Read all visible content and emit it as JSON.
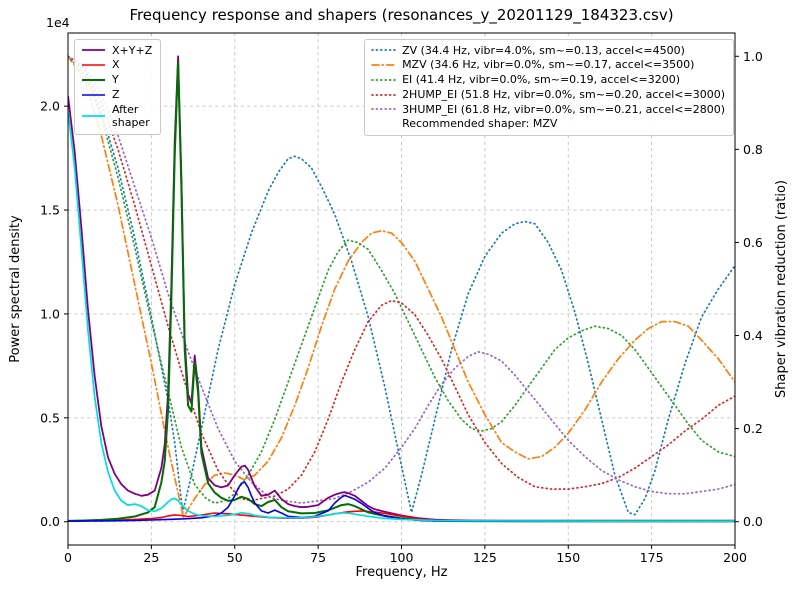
{
  "chart_data": {
    "type": "line",
    "title": "Frequency response and shapers (resonances_y_20201129_184323.csv)",
    "xlabel": "Frequency, Hz",
    "ylabel": "Power spectral density",
    "ylabel_right": "Shaper vibration reduction (ratio)",
    "offset_text": "1e4",
    "grid": true,
    "xlim": [
      0,
      200
    ],
    "ylim_left": [
      -1120,
      23520
    ],
    "ylim_right": [
      -0.05,
      1.05
    ],
    "x_ticks": [
      0,
      25,
      50,
      75,
      100,
      125,
      150,
      175,
      200
    ],
    "y_ticks_left": {
      "values": [
        0,
        5000,
        10000,
        15000,
        20000
      ],
      "labels": [
        "0.0",
        "0.5",
        "1.0",
        "1.5",
        "2.0"
      ]
    },
    "y_ticks_right": {
      "values": [
        0,
        0.2,
        0.4,
        0.6,
        0.8,
        1.0
      ],
      "labels": [
        "0.0",
        "0.2",
        "0.4",
        "0.6",
        "0.8",
        "1.0"
      ]
    },
    "legend_left_position": "upper left",
    "legend_right_position": "upper right",
    "recommended_shaper": "MZV",
    "recommended_shaper_label": "Recommended shaper: MZV",
    "psd_series": [
      {
        "name": "X+Y+Z",
        "legend": "X+Y+Z",
        "color": "#800080",
        "dash": "solid",
        "width": 1.8,
        "axis": "left",
        "x": [
          0,
          2,
          4,
          6,
          8,
          10,
          12,
          14,
          16,
          18,
          20,
          22,
          24,
          26,
          28,
          29,
          30,
          31,
          32,
          33,
          34,
          35,
          36,
          37,
          38,
          39,
          40,
          42,
          44,
          46,
          48,
          50,
          51,
          52,
          53,
          54,
          55,
          56,
          58,
          60,
          62,
          64,
          66,
          68,
          70,
          72,
          75,
          78,
          80,
          82,
          83,
          84,
          86,
          88,
          90,
          92,
          95,
          100,
          105,
          110,
          115,
          120,
          130,
          140,
          160,
          180,
          200
        ],
        "y": [
          20500,
          17800,
          14200,
          10200,
          7000,
          4600,
          3100,
          2300,
          1800,
          1500,
          1350,
          1250,
          1300,
          1500,
          2600,
          3700,
          6200,
          11500,
          18300,
          22400,
          16600,
          8800,
          6100,
          5700,
          8000,
          6500,
          3600,
          2100,
          1750,
          1650,
          1750,
          2250,
          2450,
          2650,
          2700,
          2500,
          2100,
          1700,
          1250,
          1300,
          1500,
          1100,
          850,
          750,
          700,
          720,
          800,
          1150,
          1300,
          1400,
          1420,
          1380,
          1250,
          1000,
          750,
          600,
          480,
          300,
          170,
          100,
          80,
          60,
          50,
          50,
          50,
          50,
          50
        ]
      },
      {
        "name": "X",
        "legend": "X",
        "color": "#ff0000",
        "dash": "solid",
        "width": 1.6,
        "axis": "left",
        "x": [
          0,
          5,
          10,
          15,
          20,
          25,
          28,
          30,
          32,
          34,
          36,
          40,
          44,
          48,
          52,
          56,
          60,
          65,
          70,
          75,
          80,
          84,
          88,
          92,
          96,
          100,
          105,
          110,
          120,
          140,
          160,
          180,
          200
        ],
        "y": [
          30,
          40,
          60,
          80,
          110,
          150,
          200,
          280,
          330,
          300,
          250,
          320,
          420,
          380,
          320,
          260,
          210,
          170,
          170,
          230,
          380,
          480,
          520,
          470,
          370,
          260,
          140,
          70,
          40,
          30,
          30,
          30,
          30
        ]
      },
      {
        "name": "Y",
        "legend": "Y",
        "color": "#006e00",
        "dash": "solid",
        "width": 2.0,
        "axis": "left",
        "x": [
          0,
          5,
          10,
          15,
          20,
          24,
          26,
          28,
          29,
          30,
          31,
          32,
          33,
          34,
          35,
          36,
          37,
          38,
          39,
          40,
          42,
          44,
          46,
          48,
          50,
          52,
          54,
          56,
          58,
          60,
          62,
          64,
          66,
          70,
          74,
          78,
          82,
          84,
          86,
          90,
          95,
          100,
          105,
          110,
          120,
          140,
          160,
          180,
          200
        ],
        "y": [
          40,
          60,
          90,
          140,
          250,
          450,
          700,
          1900,
          2900,
          5400,
          10800,
          17600,
          22100,
          16100,
          8300,
          5600,
          5300,
          7700,
          6200,
          3300,
          1850,
          1400,
          1150,
          1000,
          1050,
          1200,
          1100,
          850,
          750,
          950,
          1050,
          700,
          500,
          400,
          420,
          550,
          800,
          850,
          750,
          450,
          280,
          160,
          90,
          50,
          30,
          20,
          20,
          20,
          20
        ]
      },
      {
        "name": "Z",
        "legend": "Z",
        "color": "#0000ee",
        "dash": "solid",
        "width": 1.6,
        "axis": "left",
        "x": [
          0,
          10,
          20,
          30,
          35,
          40,
          44,
          46,
          48,
          50,
          51,
          52,
          53,
          54,
          55,
          56,
          58,
          60,
          62,
          64,
          66,
          70,
          74,
          78,
          80,
          82,
          83,
          84,
          86,
          88,
          90,
          92,
          95,
          100,
          105,
          110,
          120,
          140,
          160,
          180,
          200
        ],
        "y": [
          30,
          40,
          60,
          110,
          140,
          190,
          290,
          420,
          700,
          1250,
          1600,
          1850,
          1900,
          1650,
          1250,
          900,
          520,
          420,
          560,
          420,
          260,
          200,
          260,
          520,
          900,
          1180,
          1260,
          1210,
          1080,
          880,
          640,
          440,
          270,
          140,
          70,
          40,
          30,
          20,
          20,
          20,
          20
        ]
      },
      {
        "name": "After-shaper",
        "legend": "After\nshaper",
        "color": "#00dde0",
        "dash": "solid",
        "width": 1.7,
        "axis": "left",
        "x": [
          0,
          2,
          4,
          6,
          8,
          10,
          12,
          14,
          16,
          18,
          20,
          22,
          24,
          26,
          28,
          30,
          31,
          32,
          33,
          34,
          36,
          38,
          40,
          44,
          48,
          50,
          52,
          54,
          56,
          60,
          65,
          70,
          75,
          78,
          80,
          82,
          84,
          86,
          90,
          95,
          100,
          110,
          120,
          140,
          160,
          180,
          200
        ],
        "y": [
          19800,
          17000,
          13200,
          9200,
          6000,
          3800,
          2400,
          1500,
          1000,
          800,
          850,
          750,
          550,
          500,
          650,
          950,
          1080,
          1120,
          1020,
          820,
          520,
          360,
          290,
          260,
          310,
          360,
          430,
          390,
          300,
          220,
          190,
          190,
          260,
          330,
          390,
          430,
          410,
          360,
          260,
          160,
          110,
          60,
          45,
          35,
          30,
          30,
          30
        ]
      }
    ],
    "shaper_series": [
      {
        "name": "ZV",
        "legend": "ZV (34.4 Hz, vibr=4.0%, sm~=0.13, accel<=4500)",
        "color": "#1f77b4",
        "dash": "dot",
        "width": 1.7,
        "axis": "right",
        "x": [
          0,
          5,
          10,
          15,
          20,
          25,
          30,
          32,
          34.4,
          37,
          40,
          45,
          50,
          55,
          60,
          63,
          66,
          68,
          70,
          73,
          76,
          80,
          85,
          90,
          95,
          100,
          103,
          106,
          110,
          115,
          120,
          125,
          130,
          134,
          137,
          140,
          144,
          148,
          152,
          156,
          160,
          164,
          168,
          170,
          173,
          176,
          180,
          185,
          190,
          195,
          200
        ],
        "y": [
          1.0,
          0.97,
          0.88,
          0.76,
          0.61,
          0.44,
          0.26,
          0.17,
          0.02,
          0.1,
          0.2,
          0.37,
          0.51,
          0.62,
          0.71,
          0.75,
          0.78,
          0.785,
          0.78,
          0.76,
          0.72,
          0.66,
          0.56,
          0.44,
          0.29,
          0.12,
          0.02,
          0.1,
          0.22,
          0.37,
          0.49,
          0.57,
          0.62,
          0.64,
          0.645,
          0.64,
          0.6,
          0.54,
          0.45,
          0.34,
          0.22,
          0.1,
          0.02,
          0.015,
          0.05,
          0.11,
          0.22,
          0.34,
          0.44,
          0.5,
          0.55
        ]
      },
      {
        "name": "MZV",
        "legend": "MZV (34.6 Hz, vibr=0.0%, sm~=0.17, accel<=3500)",
        "color": "#ff7f0e",
        "dash": "dashdot",
        "width": 1.7,
        "axis": "right",
        "x": [
          0,
          5,
          10,
          15,
          20,
          25,
          30,
          34.6,
          38,
          41,
          44,
          47,
          50,
          53,
          56,
          60,
          64,
          68,
          72,
          76,
          80,
          84,
          88,
          91,
          94,
          97,
          100,
          104,
          108,
          112,
          116,
          120,
          125,
          130,
          134,
          138,
          142,
          146,
          150,
          155,
          160,
          165,
          170,
          174,
          178,
          182,
          186,
          190,
          195,
          200
        ],
        "y": [
          1.0,
          0.95,
          0.83,
          0.68,
          0.51,
          0.34,
          0.16,
          0.01,
          0.05,
          0.08,
          0.1,
          0.105,
          0.1,
          0.09,
          0.1,
          0.13,
          0.18,
          0.25,
          0.33,
          0.42,
          0.5,
          0.56,
          0.6,
          0.62,
          0.625,
          0.62,
          0.6,
          0.56,
          0.5,
          0.44,
          0.37,
          0.3,
          0.23,
          0.17,
          0.15,
          0.135,
          0.14,
          0.16,
          0.19,
          0.24,
          0.3,
          0.35,
          0.39,
          0.415,
          0.43,
          0.43,
          0.42,
          0.39,
          0.35,
          0.3
        ]
      },
      {
        "name": "EI",
        "legend": "EI (41.4 Hz, vibr=0.0%, sm~=0.19, accel<=3200)",
        "color": "#2ca02c",
        "dash": "dot",
        "width": 1.7,
        "axis": "right",
        "x": [
          0,
          5,
          10,
          15,
          20,
          25,
          30,
          34,
          38,
          41.4,
          44,
          47,
          50,
          54,
          58,
          62,
          66,
          70,
          74,
          78,
          81,
          84,
          87,
          90,
          94,
          98,
          102,
          106,
          110,
          114,
          118,
          121,
          124,
          127,
          130,
          134,
          138,
          142,
          146,
          150,
          154,
          158,
          162,
          166,
          170,
          174,
          178,
          182,
          186,
          190,
          195,
          200
        ],
        "y": [
          1.0,
          0.96,
          0.87,
          0.74,
          0.59,
          0.43,
          0.28,
          0.16,
          0.08,
          0.05,
          0.04,
          0.045,
          0.06,
          0.1,
          0.15,
          0.22,
          0.3,
          0.38,
          0.46,
          0.54,
          0.58,
          0.605,
          0.6,
          0.585,
          0.54,
          0.49,
          0.43,
          0.37,
          0.31,
          0.26,
          0.22,
          0.2,
          0.195,
          0.2,
          0.215,
          0.25,
          0.29,
          0.33,
          0.37,
          0.395,
          0.41,
          0.42,
          0.415,
          0.4,
          0.37,
          0.33,
          0.29,
          0.25,
          0.21,
          0.175,
          0.15,
          0.14
        ]
      },
      {
        "name": "2HUMP_EI",
        "legend": "2HUMP_EI (51.8 Hz, vibr=0.0%, sm~=0.20, accel<=3000)",
        "color": "#d62728",
        "dash": "dot",
        "width": 1.7,
        "axis": "right",
        "x": [
          0,
          5,
          10,
          15,
          20,
          25,
          30,
          35,
          40,
          45,
          48,
          51.8,
          55,
          58,
          62,
          66,
          70,
          74,
          78,
          82,
          86,
          90,
          94,
          97,
          100,
          104,
          108,
          112,
          116,
          120,
          125,
          130,
          135,
          140,
          145,
          150,
          155,
          160,
          165,
          170,
          175,
          180,
          185,
          190,
          195,
          200
        ],
        "y": [
          1.0,
          0.975,
          0.9,
          0.8,
          0.68,
          0.55,
          0.42,
          0.3,
          0.19,
          0.11,
          0.08,
          0.05,
          0.045,
          0.05,
          0.055,
          0.07,
          0.1,
          0.15,
          0.22,
          0.3,
          0.37,
          0.43,
          0.465,
          0.475,
          0.47,
          0.445,
          0.4,
          0.35,
          0.29,
          0.23,
          0.17,
          0.125,
          0.095,
          0.075,
          0.07,
          0.07,
          0.075,
          0.082,
          0.095,
          0.115,
          0.14,
          0.165,
          0.195,
          0.22,
          0.25,
          0.27
        ]
      },
      {
        "name": "3HUMP_EI",
        "legend": "3HUMP_EI (61.8 Hz, vibr=0.0%, sm~=0.21, accel<=2800)",
        "color": "#9467bd",
        "dash": "dot",
        "width": 1.7,
        "axis": "right",
        "x": [
          0,
          5,
          10,
          15,
          20,
          25,
          30,
          35,
          40,
          45,
          50,
          55,
          60,
          61.8,
          65,
          70,
          75,
          80,
          85,
          90,
          95,
          100,
          104,
          108,
          112,
          116,
          120,
          123,
          126,
          130,
          134,
          138,
          142,
          146,
          150,
          155,
          160,
          165,
          170,
          175,
          180,
          185,
          190,
          195,
          200
        ],
        "y": [
          1.0,
          0.98,
          0.92,
          0.83,
          0.72,
          0.61,
          0.49,
          0.385,
          0.29,
          0.2,
          0.13,
          0.085,
          0.055,
          0.05,
          0.045,
          0.04,
          0.045,
          0.05,
          0.065,
          0.085,
          0.115,
          0.16,
          0.2,
          0.25,
          0.295,
          0.33,
          0.355,
          0.365,
          0.36,
          0.345,
          0.315,
          0.28,
          0.245,
          0.21,
          0.175,
          0.14,
          0.11,
          0.09,
          0.075,
          0.065,
          0.06,
          0.06,
          0.065,
          0.07,
          0.08
        ]
      }
    ]
  }
}
